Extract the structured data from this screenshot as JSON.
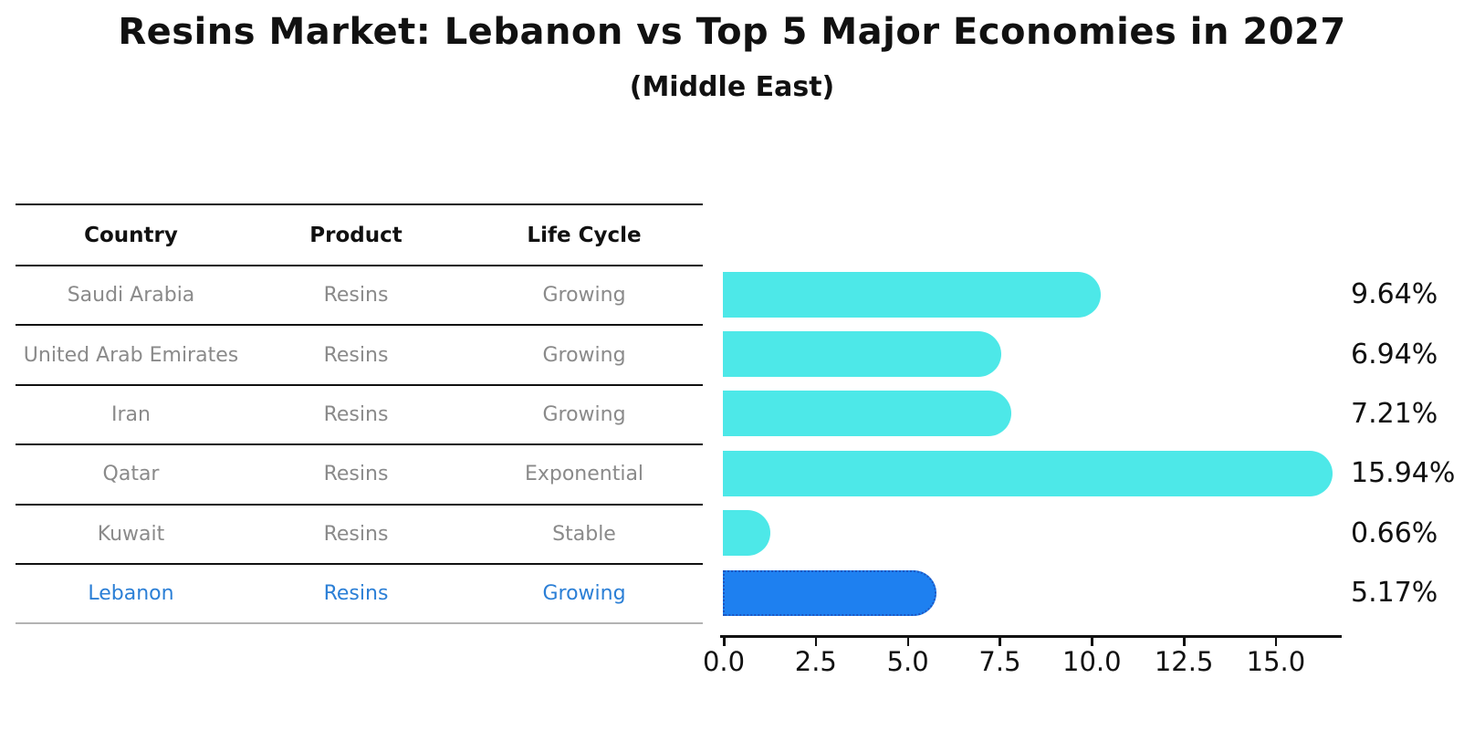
{
  "title": "Resins Market: Lebanon vs Top 5 Major Economies in 2027",
  "subtitle": "(Middle East)",
  "table": {
    "headers": [
      "Country",
      "Product",
      "Life Cycle"
    ],
    "rows": [
      {
        "country": "Saudi Arabia",
        "product": "Resins",
        "life_cycle": "Growing",
        "highlight": false
      },
      {
        "country": "United Arab Emirates",
        "product": "Resins",
        "life_cycle": "Growing",
        "highlight": false
      },
      {
        "country": "Iran",
        "product": "Resins",
        "life_cycle": "Growing",
        "highlight": false
      },
      {
        "country": "Qatar",
        "product": "Resins",
        "life_cycle": "Exponential",
        "highlight": false
      },
      {
        "country": "Kuwait",
        "product": "Resins",
        "life_cycle": "Stable",
        "highlight": false
      },
      {
        "country": "Lebanon",
        "product": "Resins",
        "life_cycle": "Growing",
        "highlight": true
      }
    ]
  },
  "chart_data": {
    "type": "bar",
    "orientation": "horizontal",
    "title": "Resins Market: Lebanon vs Top 5 Major Economies in 2027",
    "subtitle": "(Middle East)",
    "categories": [
      "Saudi Arabia",
      "United Arab Emirates",
      "Iran",
      "Qatar",
      "Kuwait",
      "Lebanon"
    ],
    "values": [
      9.64,
      6.94,
      7.21,
      15.94,
      0.66,
      5.17
    ],
    "value_labels": [
      "9.64%",
      "6.94%",
      "7.21%",
      "15.94%",
      "0.66%",
      "5.17%"
    ],
    "x_tick_labels": [
      "0.0",
      "2.5",
      "5.0",
      "7.5",
      "10.0",
      "12.5",
      "15.0"
    ],
    "x_tick_values": [
      0,
      2.5,
      5,
      7.5,
      10,
      12.5,
      15
    ],
    "xlim": [
      0,
      16.8
    ],
    "grid": false,
    "legend": false,
    "highlight_index": 5,
    "bar_color": "#4de8e8",
    "highlight_bar_color": "#1e80f0",
    "highlight_border_color": "#1d55c0",
    "highlight_text_color": "#2b7fd6",
    "row_text_color": "#8a8a8a",
    "axis_color": "#111111"
  }
}
